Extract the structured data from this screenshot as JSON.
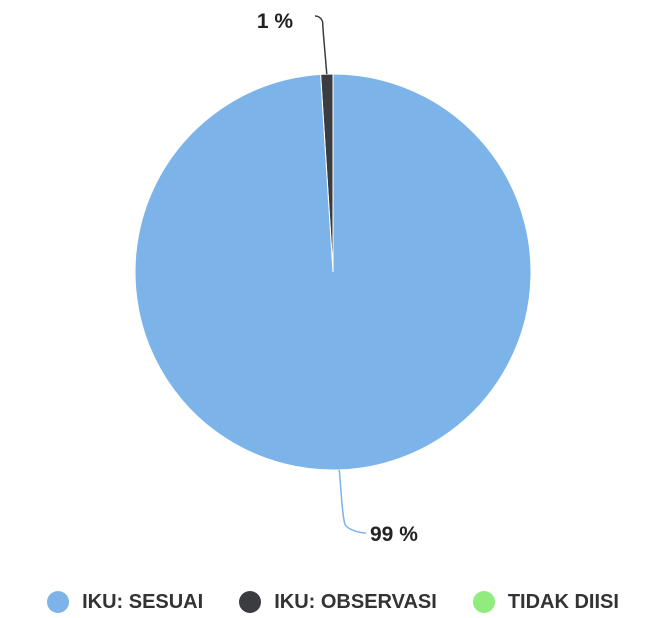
{
  "chart_data": {
    "type": "pie",
    "title": "",
    "slices": [
      {
        "name": "IKU: SESUAI",
        "value": 99,
        "label": "99 %",
        "color": "#7cb4ea"
      },
      {
        "name": "IKU: OBSERVASI",
        "value": 1,
        "label": "1 %",
        "color": "#3a3c40"
      },
      {
        "name": "TIDAK DIISI",
        "value": 0,
        "label": "",
        "color": "#90ed7d"
      }
    ],
    "legend_position": "bottom"
  }
}
